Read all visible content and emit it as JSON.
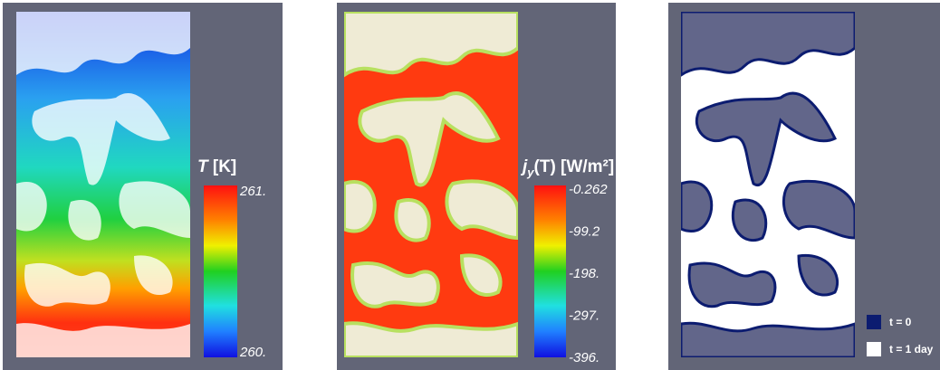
{
  "panels": [
    {
      "colorbar": {
        "symbol": "T",
        "rest": " [K]",
        "ticks": [
          "261.",
          "260."
        ]
      }
    },
    {
      "colorbar": {
        "symbol": "j",
        "subscript": "y",
        "rest": "(T) [W/m²]",
        "ticks": [
          "-0.262",
          "-99.2",
          "-198.",
          "-297.",
          "-396."
        ]
      }
    },
    {
      "legend": [
        {
          "label": "t = 0",
          "color": "#0c1c70"
        },
        {
          "label": "t = 1 day",
          "color": "#ffffff"
        }
      ]
    }
  ]
}
